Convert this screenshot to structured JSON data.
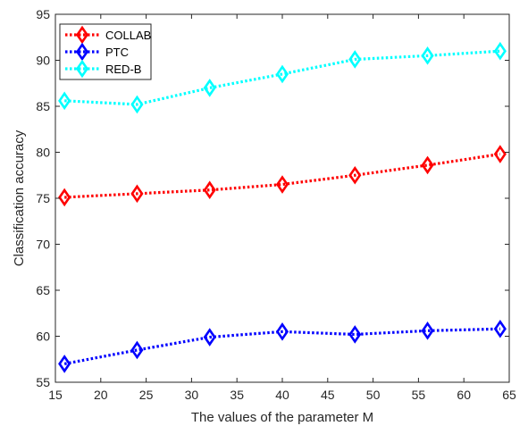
{
  "chart_data": {
    "type": "line",
    "title": "",
    "xlabel": "The values of the parameter M",
    "ylabel": "Classification accuracy",
    "xlim": [
      15,
      65
    ],
    "ylim": [
      55,
      95
    ],
    "xticks": [
      15,
      20,
      25,
      30,
      35,
      40,
      45,
      50,
      55,
      60,
      65
    ],
    "yticks": [
      55,
      60,
      65,
      70,
      75,
      80,
      85,
      90,
      95
    ],
    "grid": false,
    "legend_position": "top-left",
    "x": [
      16,
      24,
      32,
      40,
      48,
      56,
      64
    ],
    "series": [
      {
        "name": "COLLAB",
        "color": "#ff0000",
        "marker": "diamond",
        "line_style": "dotted",
        "values": [
          75.1,
          75.5,
          75.9,
          76.5,
          77.5,
          78.6,
          79.8
        ]
      },
      {
        "name": "PTC",
        "color": "#0000ff",
        "marker": "diamond",
        "line_style": "dotted",
        "values": [
          57.0,
          58.5,
          59.9,
          60.5,
          60.2,
          60.6,
          60.8
        ]
      },
      {
        "name": "RED-B",
        "color": "#00ffff",
        "marker": "diamond",
        "line_style": "dotted",
        "values": [
          85.6,
          85.2,
          87.0,
          88.5,
          90.1,
          90.5,
          91.0
        ]
      }
    ]
  }
}
